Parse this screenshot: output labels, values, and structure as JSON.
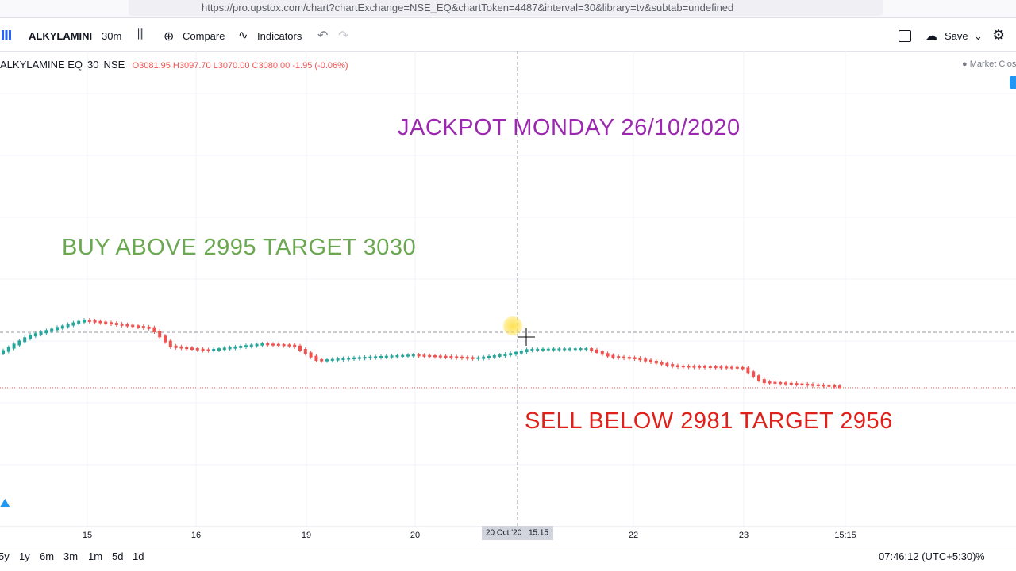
{
  "browser": {
    "url": "https://pro.upstox.com/chart?chartExchange=NSE_EQ&chartToken=4487&interval=30&library=tv&subtab=undefined"
  },
  "toolbar": {
    "symbol": "ALKYLAMINI",
    "interval": "30m",
    "compare": "Compare",
    "indicators": "Indicators",
    "save": "Save"
  },
  "legend": {
    "symbol": "ALKYLAMINE EQ",
    "interval": "30",
    "exchange": "NSE",
    "open": "O3081.95",
    "high": "H3097.70",
    "low": "L3070.00",
    "close": "C3080.00",
    "change": "-1.95 (-0.06%)",
    "status": "Market Clos"
  },
  "annotations": {
    "headline": "JACKPOT MONDAY 26/10/2020",
    "buy": "BUY ABOVE 2995 TARGET 3030",
    "sell": "SELL BELOW 2981 TARGET 2956"
  },
  "x_axis": {
    "labels": [
      "15",
      "16",
      "19",
      "20",
      "22",
      "23",
      "15:15"
    ],
    "crosshair": "20 Oct '20",
    "crosshair_time": "15:15"
  },
  "bottom_bar": {
    "ranges": [
      "5y",
      "1y",
      "6m",
      "3m",
      "1m",
      "5d",
      "1d"
    ],
    "clock": "07:46:12 (UTC+5:30)",
    "percent": "%"
  }
}
